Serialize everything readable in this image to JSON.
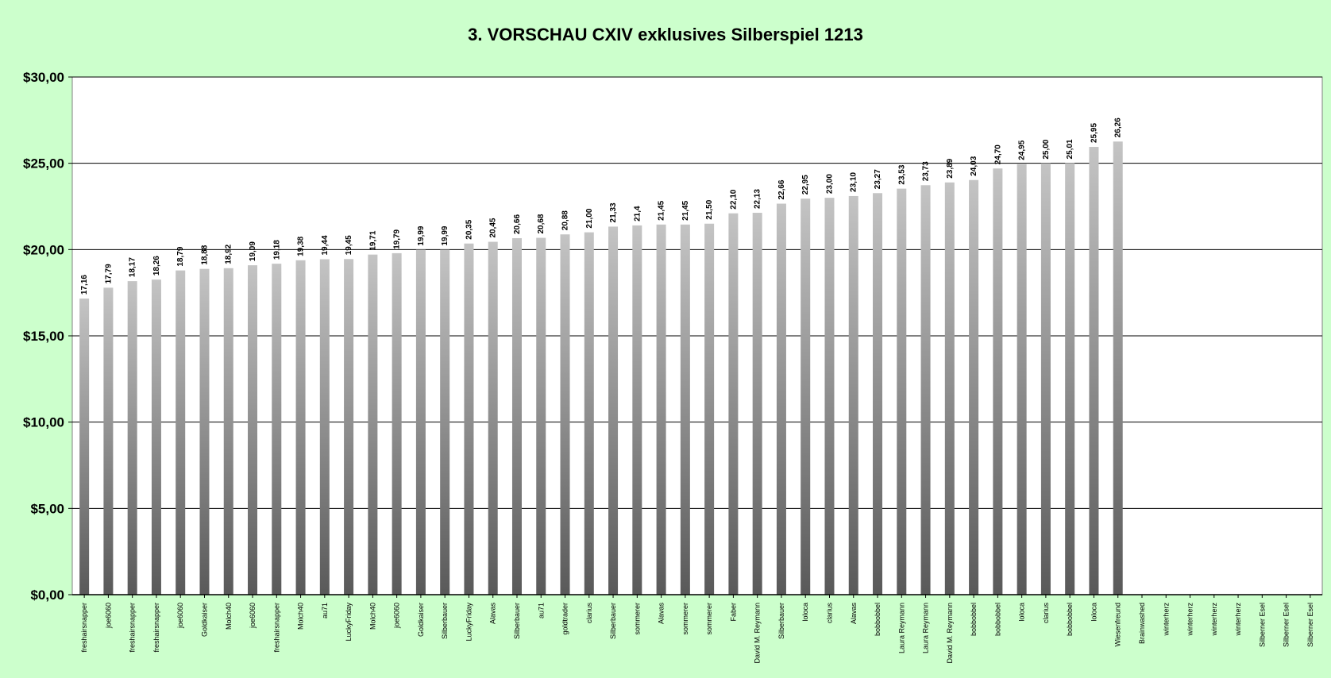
{
  "chart_data": {
    "type": "bar",
    "title": "3. VORSCHAU CXIV exklusives Silberspiel 1213",
    "xlabel": "",
    "ylabel": "",
    "ylim": [
      0,
      30
    ],
    "yticks": [
      "$0,00",
      "$5,00",
      "$10,00",
      "$15,00",
      "$20,00",
      "$25,00",
      "$30,00"
    ],
    "grid": true,
    "legend": "none",
    "colors": {
      "background": "#ccffcc",
      "plot_background": "#ffffff",
      "bar_light": "#c4c4c4",
      "bar_dark": "#595959",
      "gridline": "#000000"
    },
    "categories": [
      "freshairsnapper",
      "joe6060",
      "freshairsnapper",
      "freshairsnapper",
      "joe6060",
      "Goldkaiser",
      "Molch40",
      "joe6060",
      "freshairsnapper",
      "Molch40",
      "au71",
      "LuckyFriday",
      "Molch40",
      "joe6060",
      "Goldkaiser",
      "Silberbauer",
      "LuckyFriday",
      "Alavas",
      "Silberbauer",
      "au71",
      "goldtrader",
      "clarius",
      "Silberbauer",
      "sommerer",
      "Alavas",
      "sommerer",
      "sommerer",
      "Faber",
      "David M. Reymann",
      "Silberbauer",
      "loloca",
      "clarius",
      "Alavas",
      "bobbobbel",
      "Laura Reymann",
      "Laura Reymann",
      "David M. Reymann",
      "bobbobbel",
      "bobbobbel",
      "loloca",
      "clarius",
      "bobbobbel",
      "loloca",
      "Wiesenfreund",
      "Brainwashed",
      "winterherz",
      "winterherz",
      "winterherz",
      "winterherz",
      "Silberner Esel",
      "Silberner Esel",
      "Silberner Esel"
    ],
    "values": [
      17.16,
      17.79,
      18.17,
      18.26,
      18.79,
      18.88,
      18.92,
      19.09,
      19.18,
      19.38,
      19.44,
      19.45,
      19.71,
      19.79,
      19.99,
      19.99,
      20.35,
      20.45,
      20.66,
      20.68,
      20.88,
      21.0,
      21.33,
      21.4,
      21.45,
      21.45,
      21.5,
      22.1,
      22.13,
      22.66,
      22.95,
      23.0,
      23.1,
      23.27,
      23.53,
      23.73,
      23.89,
      24.03,
      24.7,
      24.95,
      25.0,
      25.01,
      25.95,
      26.26,
      null,
      null,
      null,
      null,
      null,
      null,
      null,
      null
    ],
    "data_labels": [
      "17,16",
      "17,79",
      "18,17",
      "18,26",
      "18,79",
      "18,88",
      "18,92",
      "19,09",
      "19,18",
      "19,38",
      "19,44",
      "19,45",
      "19,71",
      "19,79",
      "19,99",
      "19,99",
      "20,35",
      "20,45",
      "20,66",
      "20,68",
      "20,88",
      "21,00",
      "21,33",
      "21,4",
      "21,45",
      "21,45",
      "21,50",
      "22,10",
      "22,13",
      "22,66",
      "22,95",
      "23,00",
      "23,10",
      "23,27",
      "23,53",
      "23,73",
      "23,89",
      "24,03",
      "24,70",
      "24,95",
      "25,00",
      "25,01",
      "25,95",
      "26,26",
      "",
      "",
      "",
      "",
      "",
      "",
      "",
      ""
    ]
  }
}
